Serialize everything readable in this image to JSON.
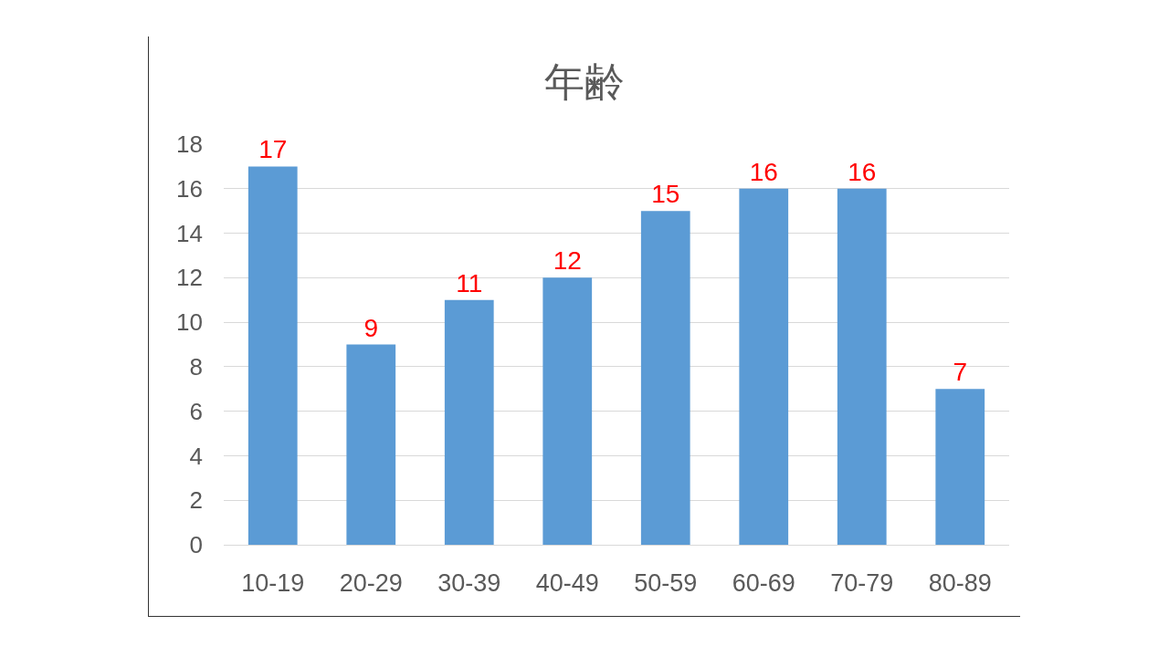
{
  "chart_data": {
    "type": "bar",
    "title": "年齢",
    "categories": [
      "10-19",
      "20-29",
      "30-39",
      "40-49",
      "50-59",
      "60-69",
      "70-79",
      "80-89"
    ],
    "values": [
      17,
      9,
      11,
      12,
      15,
      16,
      16,
      7
    ],
    "color": "#5b9bd5",
    "ylim": [
      0,
      18
    ],
    "yticks": [
      0,
      2,
      4,
      6,
      8,
      10,
      12,
      14,
      16,
      18
    ],
    "grid": "y",
    "data_labels": true,
    "legend": false
  }
}
